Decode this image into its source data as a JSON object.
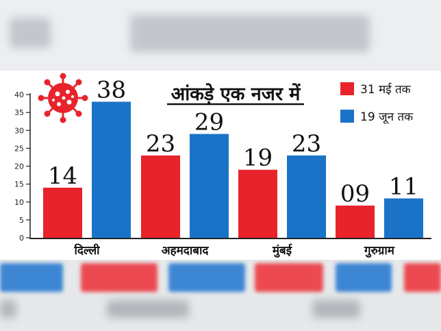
{
  "chart_data": {
    "type": "bar",
    "title": "आंकड़े एक नजर में",
    "categories": [
      "दिल्ली",
      "अहमदाबाद",
      "मुंबई",
      "गुरुग्राम"
    ],
    "series": [
      {
        "name": "31 मई तक",
        "color": "#e8232b",
        "values": [
          14,
          23,
          19,
          9
        ],
        "labels": [
          "14",
          "23",
          "19",
          "09"
        ]
      },
      {
        "name": "19 जून तक",
        "color": "#1b73c8",
        "values": [
          38,
          29,
          23,
          11
        ],
        "labels": [
          "38",
          "29",
          "23",
          "11"
        ]
      }
    ],
    "yticks": [
      "0",
      "5",
      "10",
      "15",
      "20",
      "25",
      "30",
      "35",
      "40"
    ],
    "ylim": [
      0,
      40
    ],
    "legend_position": "top-right",
    "grid": false
  },
  "icon": "coronavirus-icon"
}
